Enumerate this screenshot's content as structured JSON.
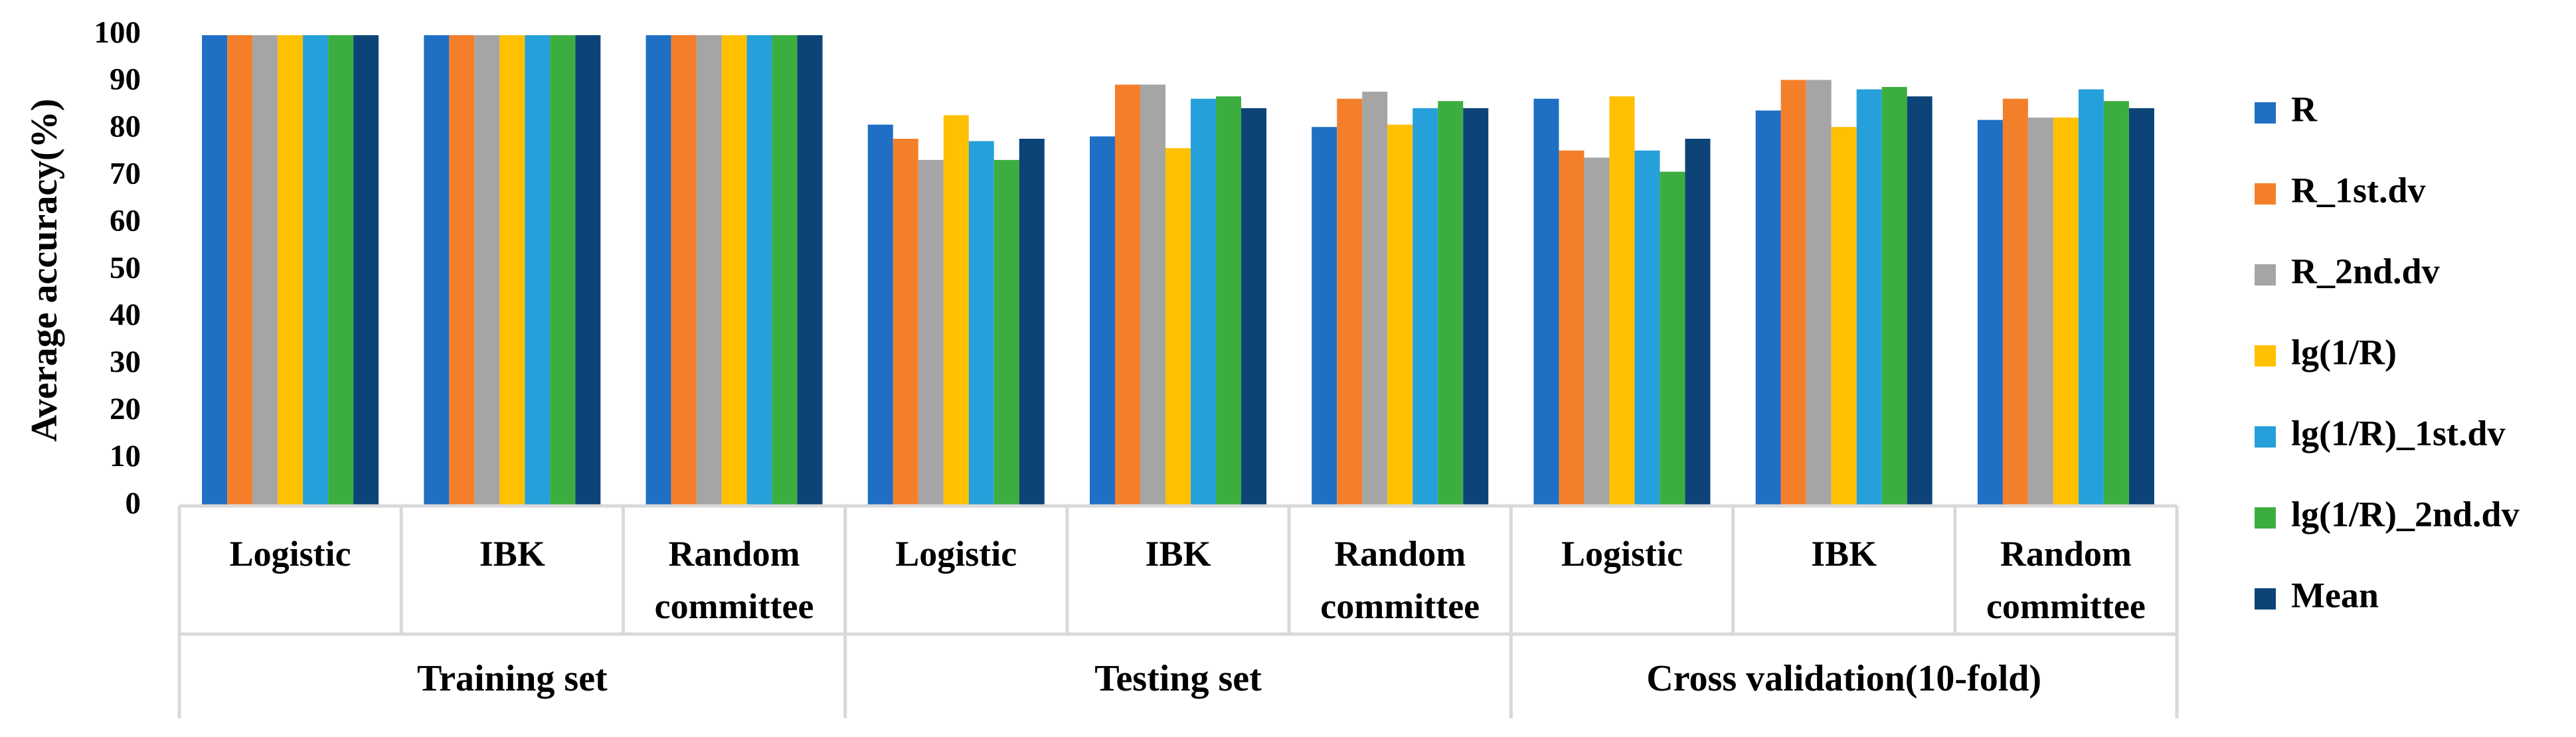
{
  "chart_data": {
    "type": "bar",
    "ylabel": "Average accuracy(%)",
    "xlabel": "",
    "ylim": [
      0,
      100
    ],
    "ytick_step": 10,
    "yticks": [
      "0",
      "10",
      "20",
      "30",
      "40",
      "50",
      "60",
      "70",
      "80",
      "90",
      "100"
    ],
    "grid": false,
    "legend_position": "right",
    "groups": [
      {
        "label": "Training set",
        "categories": [
          "Logistic",
          "IBK",
          "Random committee"
        ]
      },
      {
        "label": "Testing set",
        "categories": [
          "Logistic",
          "IBK",
          "Random committee"
        ]
      },
      {
        "label": "Cross validation(10-fold)",
        "categories": [
          "Logistic",
          "IBK",
          "Random committee"
        ]
      }
    ],
    "category_lines": [
      [
        "Logistic"
      ],
      [
        "IBK"
      ],
      [
        "Random",
        "committee"
      ],
      [
        "Logistic"
      ],
      [
        "IBK"
      ],
      [
        "Random",
        "committee"
      ],
      [
        "Logistic"
      ],
      [
        "IBK"
      ],
      [
        "Random",
        "committee"
      ]
    ],
    "series": [
      {
        "name": "R",
        "color": "#1f6fc5",
        "values": [
          100,
          100,
          100,
          81,
          78.5,
          80.5,
          86.5,
          84,
          82
        ]
      },
      {
        "name": "R_1st.dv",
        "color": "#f47f2a",
        "values": [
          100,
          100,
          100,
          78,
          89.5,
          86.5,
          75.5,
          90.5,
          86.5
        ]
      },
      {
        "name": "R_2nd.dv",
        "color": "#a5a5a5",
        "values": [
          100,
          100,
          100,
          73.5,
          89.5,
          88,
          74,
          90.5,
          82.5
        ]
      },
      {
        "name": "lg(1/R)",
        "color": "#ffc000",
        "values": [
          100,
          100,
          100,
          83,
          76,
          81,
          87,
          80.5,
          82.5
        ]
      },
      {
        "name": "lg(1/R)_1st.dv",
        "color": "#26a0da",
        "values": [
          100,
          100,
          100,
          77.5,
          86.5,
          84.5,
          75.5,
          88.5,
          88.5
        ]
      },
      {
        "name": "lg(1/R)_2nd.dv",
        "color": "#3cae3f",
        "values": [
          100,
          100,
          100,
          73.5,
          87,
          86,
          71,
          89,
          86
        ]
      },
      {
        "name": "Mean",
        "color": "#0d4478",
        "values": [
          100,
          100,
          100,
          78,
          84.5,
          84.5,
          78,
          87,
          84.5
        ]
      }
    ]
  }
}
